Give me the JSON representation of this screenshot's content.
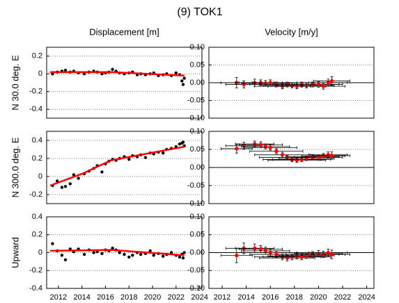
{
  "title": "(9) TOK1",
  "chart_data": [
    {
      "type": "scatter",
      "title": "Displacement [m]",
      "ylabel": "N 30.0 deg. E",
      "xlim": [
        2011,
        2024.2
      ],
      "ylim": [
        -0.5,
        0.3
      ],
      "yticks": [
        -0.4,
        -0.2,
        0,
        0.2
      ],
      "grid": true,
      "point_color": "#000000",
      "trend_color": "#ff0000",
      "x": [
        2011.5,
        2011.9,
        2012.3,
        2012.6,
        2013.0,
        2013.3,
        2013.7,
        2014.2,
        2014.6,
        2015.0,
        2015.3,
        2015.7,
        2016.0,
        2016.3,
        2016.6,
        2016.9,
        2017.2,
        2017.6,
        2018.0,
        2018.3,
        2018.7,
        2019.0,
        2019.4,
        2019.8,
        2020.1,
        2020.5,
        2020.9,
        2021.2,
        2021.6,
        2022.0,
        2022.3,
        2022.5,
        2022.6,
        2022.7
      ],
      "y": [
        0.0,
        0.02,
        0.03,
        0.04,
        0.02,
        0.03,
        0.01,
        0.0,
        0.02,
        0.03,
        0.02,
        0.0,
        0.01,
        0.02,
        0.05,
        0.03,
        0.01,
        0.0,
        0.01,
        0.02,
        -0.01,
        0.0,
        -0.01,
        0.0,
        0.01,
        -0.02,
        -0.01,
        0.0,
        -0.02,
        0.01,
        -0.01,
        -0.08,
        -0.12,
        -0.05
      ],
      "trend_x": [
        2011.3,
        2016.5,
        2022.7
      ],
      "trend_y": [
        0.02,
        0.02,
        -0.02
      ]
    },
    {
      "type": "errorbar",
      "title": "Velocity [m/y]",
      "xlim": [
        2010.9,
        2024.6
      ],
      "ylim": [
        -0.1,
        0.1
      ],
      "yticks": [
        {
          "value": -0.1,
          "label": "-0.10"
        },
        -0.05,
        {
          "value": 0,
          "label": "0.00"
        },
        0.05,
        {
          "value": 0.1,
          "label": "0.10"
        }
      ],
      "grid": true,
      "color": "#ff0000",
      "errorbar_color": "#000000",
      "x": [
        2013.2,
        2013.8,
        2014.7,
        2015.2,
        2015.6,
        2016.0,
        2016.5,
        2017.0,
        2017.4,
        2017.8,
        2018.2,
        2018.6,
        2019.0,
        2019.5,
        2020.0,
        2020.4,
        2020.8,
        2021.1
      ],
      "xerr": [
        1.3,
        1.5,
        1.6,
        1.8,
        2.0,
        2.2,
        2.2,
        2.3,
        2.3,
        2.4,
        2.4,
        2.4,
        2.3,
        2.2,
        2.0,
        1.8,
        1.6,
        1.5
      ],
      "values": [
        0.0,
        -0.005,
        0.0,
        0.0,
        -0.002,
        0.0,
        -0.005,
        -0.01,
        -0.005,
        -0.008,
        -0.01,
        -0.005,
        -0.008,
        -0.005,
        -0.005,
        -0.01,
        0.0,
        0.005
      ],
      "yerr": [
        0.015,
        0.01,
        0.01,
        0.008,
        0.008,
        0.008,
        0.007,
        0.007,
        0.007,
        0.007,
        0.007,
        0.007,
        0.007,
        0.007,
        0.008,
        0.008,
        0.01,
        0.012
      ]
    },
    {
      "type": "scatter",
      "ylabel": "N 300.0 deg. E",
      "xlim": [
        2011,
        2024.2
      ],
      "ylim": [
        -0.3,
        0.5
      ],
      "yticks": [
        -0.2,
        0,
        0.2,
        0.4
      ],
      "grid": true,
      "point_color": "#000000",
      "trend_color": "#ff0000",
      "x": [
        2011.5,
        2011.9,
        2012.3,
        2012.6,
        2013.0,
        2013.3,
        2013.7,
        2014.2,
        2014.6,
        2015.0,
        2015.3,
        2015.7,
        2016.0,
        2016.3,
        2016.6,
        2016.9,
        2017.2,
        2017.6,
        2018.0,
        2018.3,
        2018.7,
        2019.0,
        2019.4,
        2019.8,
        2020.1,
        2020.5,
        2020.9,
        2021.2,
        2021.6,
        2022.0,
        2022.3,
        2022.5,
        2022.6,
        2022.7
      ],
      "y": [
        -0.1,
        -0.05,
        -0.12,
        -0.11,
        -0.08,
        0.02,
        -0.02,
        0.03,
        0.06,
        0.09,
        0.12,
        0.05,
        0.14,
        0.17,
        0.19,
        0.18,
        0.2,
        0.22,
        0.19,
        0.23,
        0.22,
        0.24,
        0.21,
        0.26,
        0.25,
        0.27,
        0.26,
        0.3,
        0.31,
        0.33,
        0.36,
        0.37,
        0.38,
        0.34
      ],
      "trend_x": [
        2011.3,
        2014.0,
        2016.5,
        2022.7
      ],
      "trend_y": [
        -0.1,
        0.03,
        0.18,
        0.33
      ]
    },
    {
      "type": "errorbar",
      "xlim": [
        2010.9,
        2024.6
      ],
      "ylim": [
        -0.1,
        0.1
      ],
      "yticks": [
        {
          "value": -0.1,
          "label": "-0.10"
        },
        -0.05,
        {
          "value": 0,
          "label": "0.00"
        },
        0.05,
        {
          "value": 0.1,
          "label": "0.10"
        }
      ],
      "grid": true,
      "color": "#ff0000",
      "errorbar_color": "#000000",
      "x": [
        2013.2,
        2013.8,
        2014.7,
        2015.2,
        2015.6,
        2016.0,
        2016.5,
        2017.0,
        2017.4,
        2017.8,
        2018.2,
        2018.6,
        2019.0,
        2019.5,
        2020.0,
        2020.4,
        2020.8,
        2021.1
      ],
      "xerr": [
        1.3,
        1.5,
        1.6,
        1.8,
        2.0,
        2.2,
        2.2,
        2.3,
        2.3,
        2.4,
        2.4,
        2.4,
        2.3,
        2.2,
        2.0,
        1.8,
        1.6,
        1.5
      ],
      "values": [
        0.052,
        0.06,
        0.065,
        0.063,
        0.058,
        0.055,
        0.045,
        0.035,
        0.028,
        0.022,
        0.02,
        0.022,
        0.025,
        0.03,
        0.028,
        0.032,
        0.035,
        0.033
      ],
      "yerr": [
        0.012,
        0.01,
        0.008,
        0.008,
        0.007,
        0.007,
        0.007,
        0.007,
        0.006,
        0.006,
        0.006,
        0.006,
        0.006,
        0.006,
        0.007,
        0.007,
        0.008,
        0.01
      ]
    },
    {
      "type": "scatter",
      "ylabel": "Upward",
      "xlim": [
        2011,
        2024.2
      ],
      "ylim": [
        -0.4,
        0.4
      ],
      "yticks": [
        -0.4,
        -0.2,
        0,
        0.2,
        0.4
      ],
      "grid": true,
      "xticks": [
        2012,
        2014,
        2016,
        2018,
        2020,
        2022,
        2024
      ],
      "point_color": "#000000",
      "trend_color": "#ff0000",
      "x": [
        2011.5,
        2011.9,
        2012.3,
        2012.6,
        2013.0,
        2013.3,
        2013.7,
        2014.2,
        2014.6,
        2015.0,
        2015.3,
        2015.7,
        2016.0,
        2016.3,
        2016.6,
        2016.9,
        2017.2,
        2017.6,
        2018.0,
        2018.3,
        2018.7,
        2019.0,
        2019.4,
        2019.8,
        2020.1,
        2020.5,
        2020.9,
        2021.2,
        2021.6,
        2022.0,
        2022.3,
        2022.5,
        2022.6,
        2022.7
      ],
      "y": [
        0.1,
        0.02,
        -0.03,
        -0.08,
        0.04,
        0.01,
        0.04,
        -0.02,
        0.03,
        0.0,
        0.01,
        -0.01,
        0.03,
        0.02,
        0.05,
        0.03,
        0.0,
        -0.02,
        -0.05,
        -0.03,
        0.0,
        -0.02,
        -0.01,
        0.02,
        -0.03,
        -0.01,
        -0.04,
        -0.02,
        0.0,
        -0.03,
        -0.05,
        -0.02,
        -0.06,
        0.0
      ],
      "trend_x": [
        2011.3,
        2016.5,
        2022.7
      ],
      "trend_y": [
        0.02,
        0.03,
        -0.03
      ]
    },
    {
      "type": "errorbar",
      "xlim": [
        2010.9,
        2024.6
      ],
      "ylim": [
        -0.1,
        0.1
      ],
      "yticks": [
        {
          "value": -0.1,
          "label": "-0.10"
        },
        -0.05,
        {
          "value": 0,
          "label": "0.00"
        },
        0.05,
        {
          "value": 0.1,
          "label": "0.10"
        }
      ],
      "grid": true,
      "xticks": [
        2012,
        2014,
        2016,
        2018,
        2020,
        2022,
        2024
      ],
      "color": "#ff0000",
      "errorbar_color": "#000000",
      "x": [
        2013.2,
        2013.8,
        2014.7,
        2015.2,
        2015.6,
        2016.0,
        2016.5,
        2017.0,
        2017.4,
        2017.8,
        2018.2,
        2018.6,
        2019.0,
        2019.5,
        2020.0,
        2020.4,
        2020.8,
        2021.1
      ],
      "xerr": [
        1.3,
        1.5,
        1.6,
        1.8,
        2.0,
        2.2,
        2.2,
        2.3,
        2.3,
        2.4,
        2.4,
        2.4,
        2.3,
        2.2,
        2.0,
        1.8,
        1.6,
        1.5
      ],
      "values": [
        -0.008,
        0.012,
        0.012,
        0.01,
        0.005,
        0.0,
        -0.005,
        -0.012,
        -0.015,
        -0.012,
        -0.01,
        -0.012,
        -0.008,
        -0.005,
        -0.003,
        -0.005,
        0.0,
        -0.005
      ],
      "yerr": [
        0.02,
        0.015,
        0.012,
        0.01,
        0.01,
        0.009,
        0.009,
        0.008,
        0.008,
        0.008,
        0.008,
        0.008,
        0.008,
        0.008,
        0.009,
        0.009,
        0.01,
        0.012
      ]
    }
  ]
}
